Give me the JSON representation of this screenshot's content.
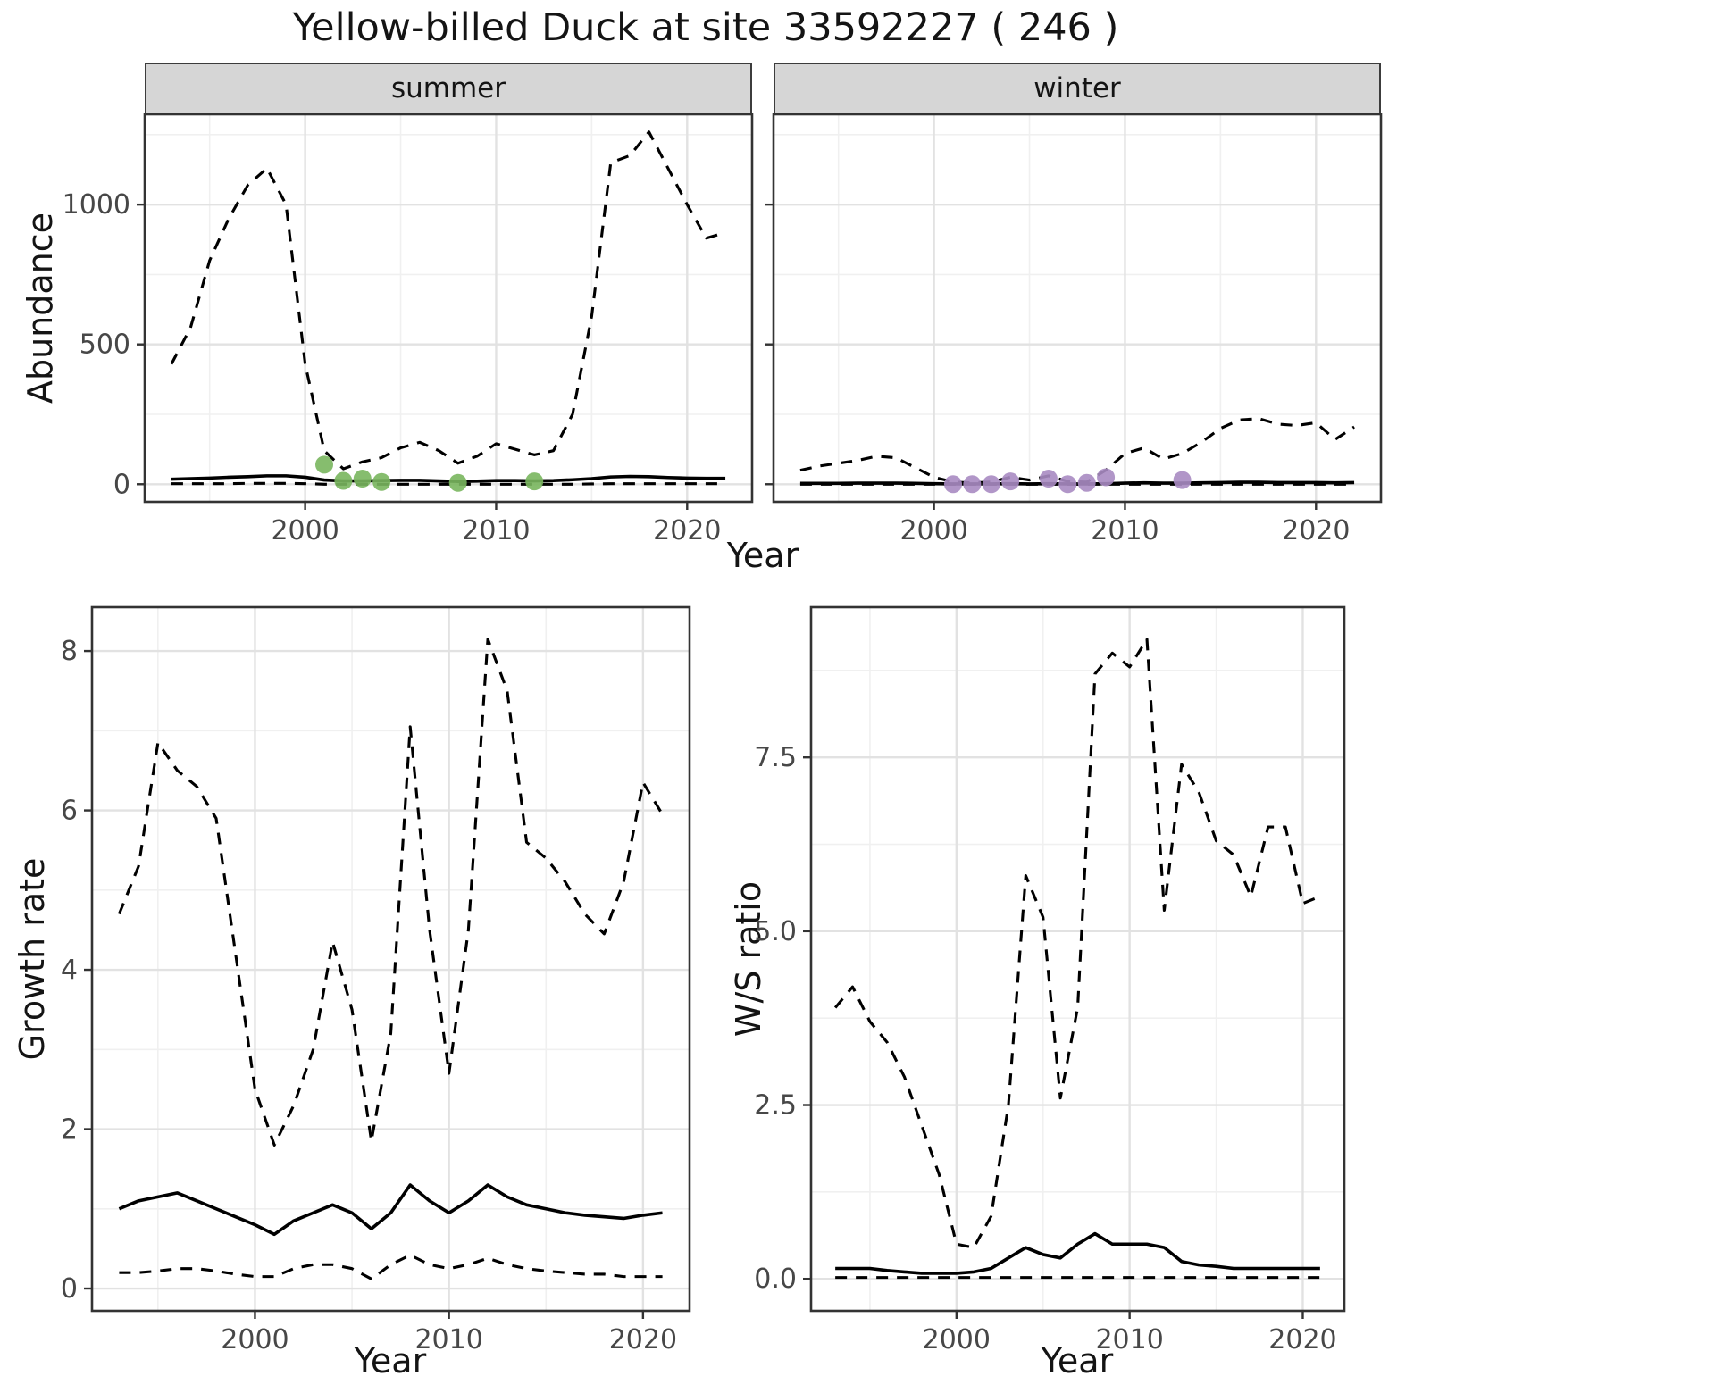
{
  "title": "Yellow-billed Duck at site 33592227 ( 246 )",
  "colors": {
    "line": "#000000",
    "summer_points": "#79b65e",
    "winter_points": "#a88bc2",
    "strip_bg": "#d6d6d6",
    "grid_major": "#e2e2e2",
    "grid_minor": "#f0f0f0",
    "axis_text": "#474747",
    "panel_border": "#333333"
  },
  "chart_data": [
    {
      "id": "abundance-summer",
      "type": "line",
      "facet_label": "summer",
      "xlabel": "Year",
      "ylabel": "Abundance",
      "xlim": [
        1991.6,
        2023.4
      ],
      "ylim": [
        -63,
        1323
      ],
      "xticks": {
        "values": [
          2000,
          2010,
          2020
        ],
        "labels": [
          "2000",
          "2010",
          "2020"
        ]
      },
      "yticks": {
        "values": [
          0,
          500,
          1000
        ],
        "labels": [
          "0",
          "500",
          "1000"
        ]
      },
      "x": [
        1993,
        1994,
        1995,
        1996,
        1997,
        1998,
        1999,
        2000,
        2001,
        2002,
        2003,
        2004,
        2005,
        2006,
        2007,
        2008,
        2009,
        2010,
        2011,
        2012,
        2013,
        2014,
        2015,
        2016,
        2017,
        2018,
        2019,
        2020,
        2021,
        2022
      ],
      "series": [
        {
          "name": "upper-ci",
          "style": "dashed",
          "color": "#000000",
          "values": [
            430,
            560,
            800,
            950,
            1070,
            1130,
            1000,
            430,
            120,
            55,
            80,
            95,
            130,
            150,
            120,
            75,
            100,
            145,
            125,
            105,
            120,
            250,
            600,
            1150,
            1175,
            1260,
            1130,
            1000,
            880,
            900
          ]
        },
        {
          "name": "median",
          "style": "solid",
          "color": "#000000",
          "values": [
            18,
            20,
            22,
            25,
            27,
            30,
            30,
            25,
            15,
            12,
            12,
            13,
            14,
            14,
            12,
            10,
            11,
            13,
            13,
            12,
            13,
            16,
            20,
            26,
            28,
            27,
            24,
            22,
            21,
            21
          ]
        },
        {
          "name": "lower-ci",
          "style": "dashed",
          "color": "#000000",
          "values": [
            2,
            2,
            2,
            2,
            3,
            3,
            3,
            2,
            0,
            0,
            0,
            0,
            0,
            0,
            0,
            0,
            0,
            0,
            0,
            0,
            0,
            0,
            1,
            2,
            2,
            2,
            2,
            2,
            2,
            2
          ]
        }
      ],
      "points": {
        "name": "observed-counts",
        "color": "#79b65e",
        "x": [
          2001,
          2002,
          2003,
          2004,
          2008,
          2012
        ],
        "y": [
          70,
          12,
          20,
          8,
          5,
          10
        ]
      }
    },
    {
      "id": "abundance-winter",
      "type": "line",
      "facet_label": "winter",
      "xlabel": "Year",
      "ylabel": "Abundance",
      "xlim": [
        1991.6,
        2023.4
      ],
      "ylim": [
        -63,
        1323
      ],
      "xticks": {
        "values": [
          2000,
          2010,
          2020
        ],
        "labels": [
          "2000",
          "2010",
          "2020"
        ]
      },
      "yticks": {
        "values": [
          0,
          500,
          1000
        ],
        "labels": [
          "0",
          "500",
          "1000"
        ]
      },
      "x": [
        1993,
        1994,
        1995,
        1996,
        1997,
        1998,
        1999,
        2000,
        2001,
        2002,
        2003,
        2004,
        2005,
        2006,
        2007,
        2008,
        2009,
        2010,
        2011,
        2012,
        2013,
        2014,
        2015,
        2016,
        2017,
        2018,
        2019,
        2020,
        2021,
        2022
      ],
      "series": [
        {
          "name": "upper-ci",
          "style": "dashed",
          "color": "#000000",
          "values": [
            50,
            65,
            75,
            85,
            100,
            95,
            60,
            25,
            8,
            5,
            8,
            25,
            15,
            30,
            10,
            8,
            50,
            110,
            130,
            90,
            110,
            150,
            200,
            230,
            235,
            215,
            210,
            220,
            160,
            205
          ]
        },
        {
          "name": "median",
          "style": "solid",
          "color": "#000000",
          "values": [
            3,
            3,
            3,
            4,
            4,
            4,
            3,
            2,
            1,
            1,
            1,
            2,
            1,
            2,
            1,
            1,
            2,
            4,
            5,
            4,
            4,
            5,
            6,
            7,
            7,
            6,
            6,
            6,
            5,
            6
          ]
        },
        {
          "name": "lower-ci",
          "style": "dashed",
          "color": "#000000",
          "values": [
            0,
            0,
            0,
            0,
            0,
            0,
            0,
            0,
            0,
            0,
            0,
            0,
            0,
            0,
            0,
            0,
            0,
            0,
            0,
            0,
            0,
            0,
            0,
            0,
            0,
            0,
            0,
            0,
            0,
            0
          ]
        }
      ],
      "points": {
        "name": "observed-counts",
        "color": "#a88bc2",
        "x": [
          2001,
          2002,
          2003,
          2004,
          2006,
          2007,
          2008,
          2009,
          2013
        ],
        "y": [
          0,
          0,
          0,
          10,
          20,
          0,
          5,
          25,
          15
        ]
      }
    },
    {
      "id": "growth-rate",
      "type": "line",
      "facet_label": "",
      "xlabel": "Year",
      "ylabel": "Growth rate",
      "xlim": [
        1991.6,
        2022.4
      ],
      "ylim": [
        -0.28,
        8.55
      ],
      "xticks": {
        "values": [
          2000,
          2010,
          2020
        ],
        "labels": [
          "2000",
          "2010",
          "2020"
        ]
      },
      "yticks": {
        "values": [
          0,
          2,
          4,
          6,
          8
        ],
        "labels": [
          "0",
          "2",
          "4",
          "6",
          "8"
        ]
      },
      "x": [
        1993,
        1994,
        1995,
        1996,
        1997,
        1998,
        1999,
        2000,
        2001,
        2002,
        2003,
        2004,
        2005,
        2006,
        2007,
        2008,
        2009,
        2010,
        2011,
        2012,
        2013,
        2014,
        2015,
        2016,
        2017,
        2018,
        2019,
        2020,
        2021
      ],
      "series": [
        {
          "name": "upper-ci",
          "style": "dashed",
          "color": "#000000",
          "values": [
            4.7,
            5.3,
            6.85,
            6.5,
            6.3,
            5.9,
            4.2,
            2.5,
            1.8,
            2.3,
            3.0,
            4.35,
            3.5,
            1.85,
            3.2,
            7.05,
            4.5,
            2.7,
            4.5,
            8.15,
            7.5,
            5.6,
            5.4,
            5.1,
            4.7,
            4.45,
            5.1,
            6.35,
            5.95
          ]
        },
        {
          "name": "median",
          "style": "solid",
          "color": "#000000",
          "values": [
            1.0,
            1.1,
            1.15,
            1.2,
            1.1,
            1.0,
            0.9,
            0.8,
            0.68,
            0.85,
            0.95,
            1.05,
            0.95,
            0.75,
            0.95,
            1.3,
            1.1,
            0.95,
            1.1,
            1.3,
            1.15,
            1.05,
            1.0,
            0.95,
            0.92,
            0.9,
            0.88,
            0.92,
            0.95
          ]
        },
        {
          "name": "lower-ci",
          "style": "dashed",
          "color": "#000000",
          "values": [
            0.2,
            0.2,
            0.22,
            0.25,
            0.25,
            0.22,
            0.18,
            0.15,
            0.15,
            0.25,
            0.3,
            0.3,
            0.25,
            0.12,
            0.3,
            0.42,
            0.3,
            0.25,
            0.3,
            0.38,
            0.3,
            0.25,
            0.22,
            0.2,
            0.18,
            0.18,
            0.15,
            0.15,
            0.15
          ]
        }
      ],
      "points": null
    },
    {
      "id": "ws-ratio",
      "type": "line",
      "facet_label": "",
      "xlabel": "Year",
      "ylabel": "W/S ratio",
      "xlim": [
        1991.6,
        2022.4
      ],
      "ylim": [
        -0.46,
        9.66
      ],
      "xticks": {
        "values": [
          2000,
          2010,
          2020
        ],
        "labels": [
          "2000",
          "2010",
          "2020"
        ]
      },
      "yticks": {
        "values": [
          0,
          2.5,
          5,
          7.5
        ],
        "labels": [
          "0.0",
          "2.5",
          "5.0",
          "7.5"
        ]
      },
      "x": [
        1993,
        1994,
        1995,
        1996,
        1997,
        1998,
        1999,
        2000,
        2001,
        2002,
        2003,
        2004,
        2005,
        2006,
        2007,
        2008,
        2009,
        2010,
        2011,
        2012,
        2013,
        2014,
        2015,
        2016,
        2017,
        2018,
        2019,
        2020,
        2021
      ],
      "series": [
        {
          "name": "upper-ci",
          "style": "dashed",
          "color": "#000000",
          "values": [
            3.9,
            4.2,
            3.7,
            3.4,
            2.9,
            2.2,
            1.5,
            0.5,
            0.45,
            0.9,
            2.5,
            5.8,
            5.2,
            2.6,
            3.9,
            8.7,
            9.0,
            8.8,
            9.2,
            5.3,
            7.4,
            7.0,
            6.3,
            6.1,
            5.5,
            6.5,
            6.5,
            5.4,
            5.5
          ]
        },
        {
          "name": "median",
          "style": "solid",
          "color": "#000000",
          "values": [
            0.15,
            0.15,
            0.15,
            0.12,
            0.1,
            0.08,
            0.08,
            0.08,
            0.1,
            0.15,
            0.3,
            0.45,
            0.35,
            0.3,
            0.5,
            0.65,
            0.5,
            0.5,
            0.5,
            0.45,
            0.25,
            0.2,
            0.18,
            0.15,
            0.15,
            0.15,
            0.15,
            0.15,
            0.15
          ]
        },
        {
          "name": "lower-ci",
          "style": "dashed",
          "color": "#000000",
          "values": [
            0.02,
            0.02,
            0.02,
            0.02,
            0.02,
            0.02,
            0.02,
            0.02,
            0.02,
            0.02,
            0.02,
            0.02,
            0.02,
            0.02,
            0.02,
            0.02,
            0.02,
            0.02,
            0.02,
            0.02,
            0.02,
            0.02,
            0.02,
            0.02,
            0.02,
            0.02,
            0.02,
            0.02,
            0.02
          ]
        }
      ],
      "points": null
    }
  ]
}
